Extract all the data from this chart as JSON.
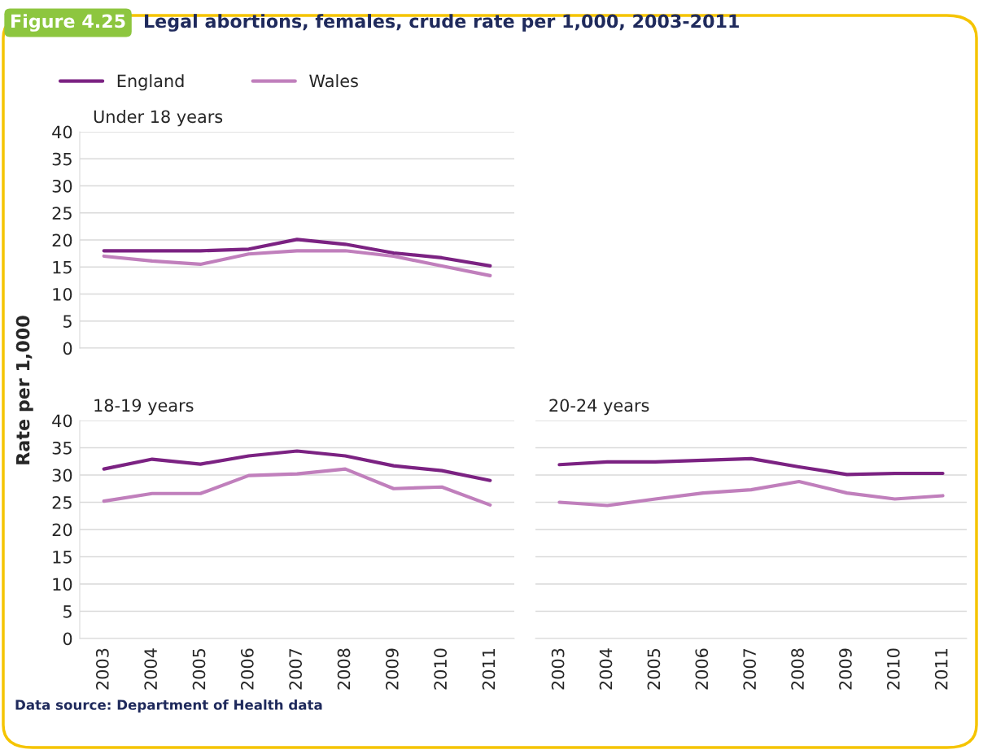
{
  "chart_data": [
    {
      "type": "line",
      "title": "Under 18 years",
      "categories": [
        "2003",
        "2004",
        "2005",
        "2006",
        "2007",
        "2008",
        "2009",
        "2010",
        "2011"
      ],
      "series": [
        {
          "name": "England",
          "color": "#7b2282",
          "values": [
            18,
            18,
            18,
            18.3,
            20.1,
            19.2,
            17.6,
            16.7,
            15.2
          ]
        },
        {
          "name": "Wales",
          "color": "#c07fbc",
          "values": [
            17,
            16.1,
            15.5,
            17.4,
            18,
            18,
            17,
            15.2,
            13.4
          ]
        }
      ],
      "ylim": [
        0,
        40
      ],
      "yticks": [
        0,
        5,
        10,
        15,
        20,
        25,
        30,
        35,
        40
      ],
      "grid": "y",
      "legend": "top left",
      "tick_labels": "y",
      "annotations": [
        "Figure 4.25",
        "Legal abortions, females, crude rate per 1,000, 2003-2011",
        "Data source: Department of Health data"
      ]
    },
    {
      "type": "line",
      "title": "18-19 years",
      "ylabel": "Rate per 1,000",
      "categories": [
        "2003",
        "2004",
        "2005",
        "2006",
        "2007",
        "2008",
        "2009",
        "2010",
        "2011"
      ],
      "series": [
        {
          "color": "#7b2282",
          "values": [
            31.1,
            32.9,
            32,
            33.5,
            34.4,
            33.5,
            31.7,
            30.8,
            29
          ]
        },
        {
          "color": "#c07fbc",
          "values": [
            25.2,
            26.6,
            26.6,
            29.9,
            30.2,
            31.1,
            27.5,
            27.8,
            24.5
          ]
        }
      ],
      "ylim": [
        0,
        40
      ],
      "yticks": [
        0,
        5,
        10,
        15,
        20,
        25,
        30,
        35,
        40
      ],
      "grid": "y"
    },
    {
      "type": "line",
      "title": "20-24 years",
      "categories": [
        "2003",
        "2004",
        "2005",
        "2006",
        "2007",
        "2008",
        "2009",
        "2010",
        "2011"
      ],
      "series": [
        {
          "color": "#7b2282",
          "values": [
            31.9,
            32.4,
            32.4,
            32.7,
            33.0,
            31.5,
            30.1,
            30.3,
            30.3
          ]
        },
        {
          "color": "#c07fbc",
          "values": [
            25,
            24.4,
            25.6,
            26.7,
            27.3,
            28.8,
            26.7,
            25.6,
            26.2
          ]
        }
      ],
      "ylim": [
        0,
        40
      ],
      "yticks": [
        0,
        5,
        10,
        15,
        20,
        25,
        30,
        35,
        40
      ],
      "grid": "y",
      "tick_labels": "x"
    }
  ]
}
